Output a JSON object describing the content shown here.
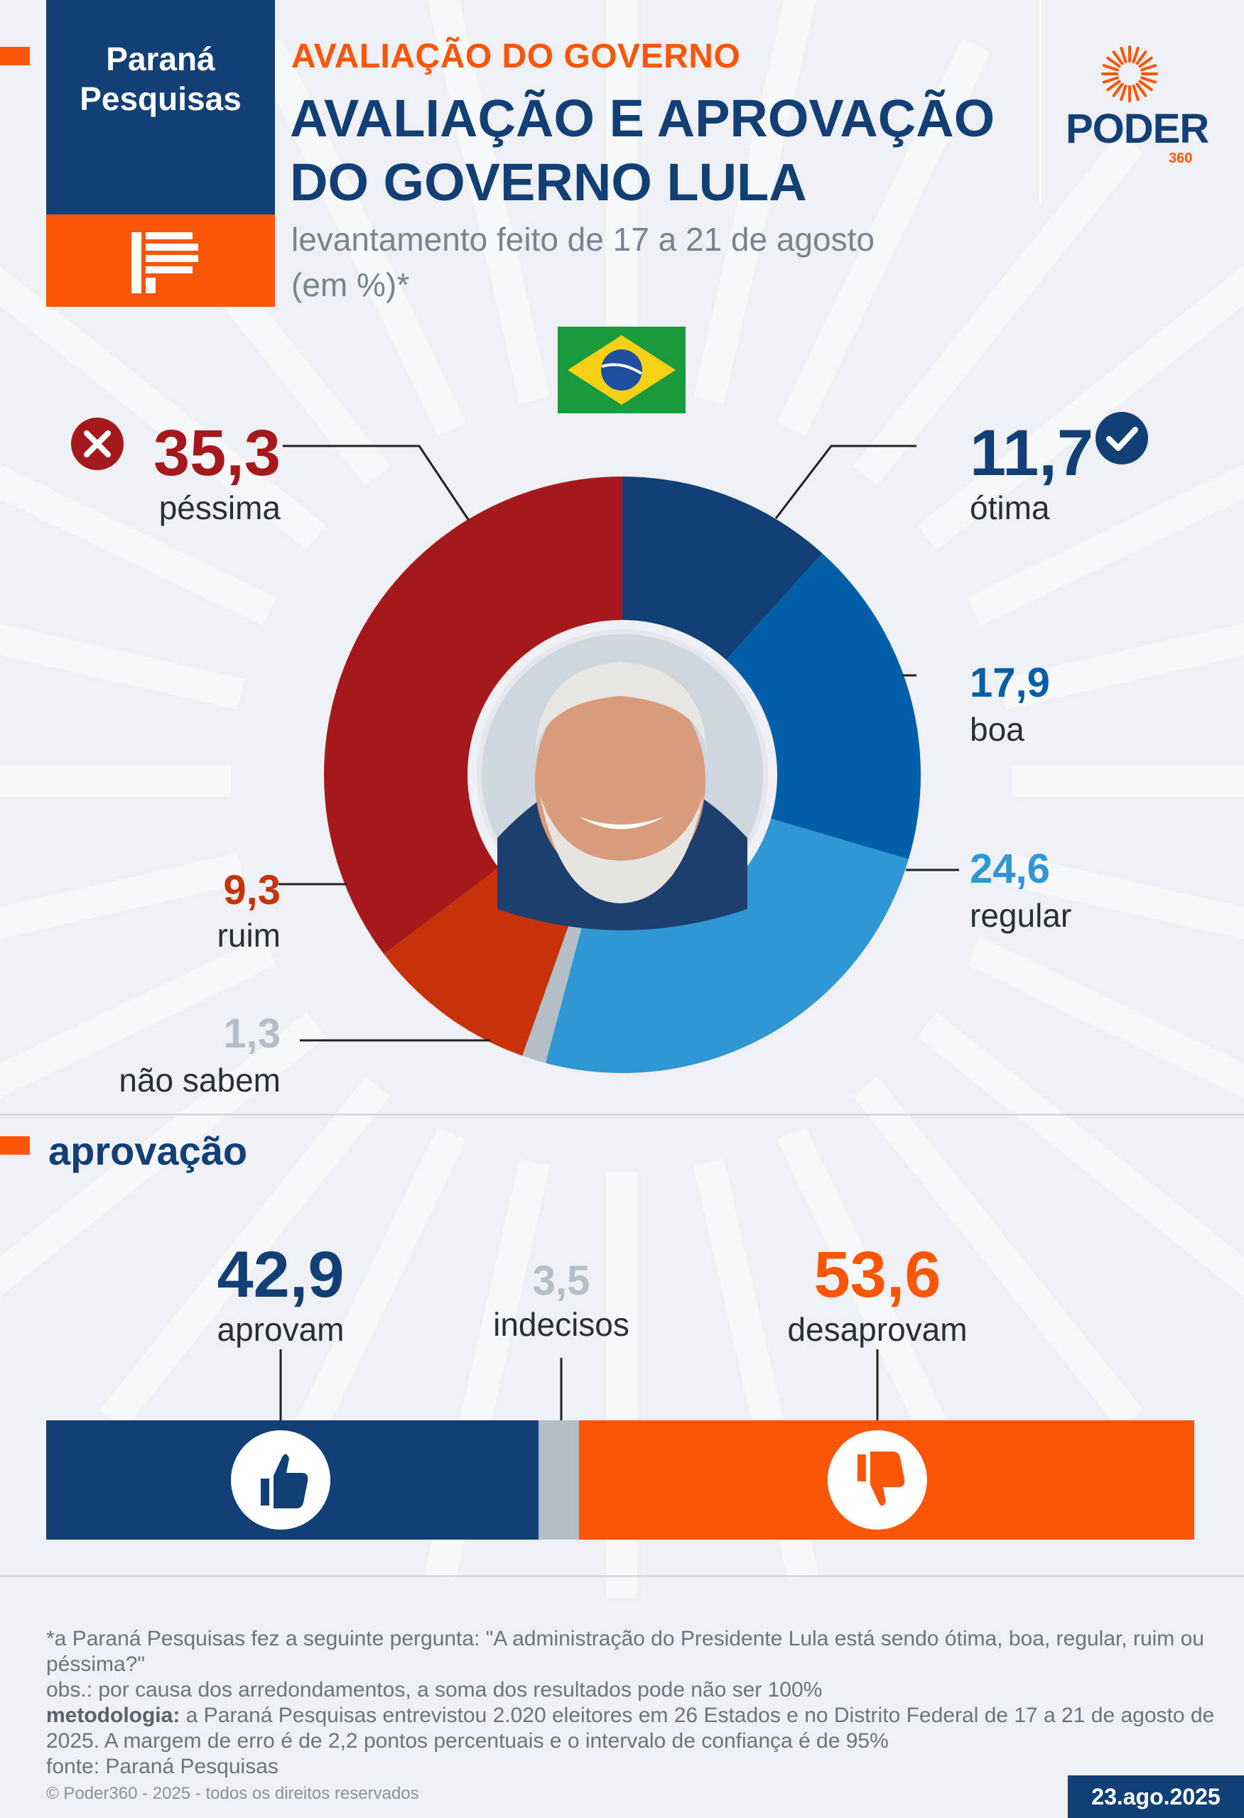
{
  "brand": {
    "left_logo_line1": "Paraná",
    "left_logo_line2": "Pesquisas",
    "right_logo": "PODER",
    "right_logo_sub": "360"
  },
  "header": {
    "kicker": "AVALIAÇÃO DO GOVERNO",
    "title_line1": "AVALIAÇÃO E APROVAÇÃO",
    "title_line2": "DO GOVERNO LULA",
    "subtitle_line1": "levantamento feito de 17 a 21 de agosto",
    "subtitle_line2": "(em %)*"
  },
  "colors": {
    "navy": "#123f75",
    "orange": "#fb5607",
    "pessima": "#a5191c",
    "ruim": "#c8320a",
    "nao_sabem": "#b4bec6",
    "regular": "#2f97d4",
    "boa": "#035ea8",
    "otima": "#123f75"
  },
  "chart_data": [
    {
      "type": "pie",
      "variant": "donut",
      "title": "",
      "start": "top, clockwise from ótima",
      "slices": [
        {
          "label": "ótima",
          "value": 11.7,
          "display": "11,7",
          "color": "#123f75"
        },
        {
          "label": "boa",
          "value": 17.9,
          "display": "17,9",
          "color": "#035ea8"
        },
        {
          "label": "regular",
          "value": 24.6,
          "display": "24,6",
          "color": "#2f97d4"
        },
        {
          "label": "não sabem",
          "value": 1.3,
          "display": "1,3",
          "color": "#b4bec6"
        },
        {
          "label": "ruim",
          "value": 9.3,
          "display": "9,3",
          "color": "#c8320a"
        },
        {
          "label": "péssima",
          "value": 35.3,
          "display": "35,3",
          "color": "#a5191c"
        }
      ]
    },
    {
      "type": "bar",
      "variant": "stacked-horizontal",
      "title": "aprovação",
      "segments": [
        {
          "label": "aprovam",
          "value": 42.9,
          "display": "42,9",
          "color": "#123f75",
          "icon": "thumbs-up-icon"
        },
        {
          "label": "indecisos",
          "value": 3.5,
          "display": "3,5",
          "color": "#b4bec6"
        },
        {
          "label": "desaprovam",
          "value": 53.6,
          "display": "53,6",
          "color": "#fb5607",
          "icon": "thumbs-down-icon"
        }
      ]
    }
  ],
  "footer": {
    "note1": "*a Paraná Pesquisas fez a seguinte pergunta: \"A administração do Presidente Lula está sendo ótima, boa, regular, ruim ou péssima?\"",
    "note2": "obs.: por causa dos arredondamentos, a soma dos resultados pode não ser 100%",
    "method_label": "metodologia:",
    "method_text": " a Paraná Pesquisas entrevistou 2.020 eleitores em 26 Estados e no Distrito Federal de 17 a 21 de agosto de 2025. A margem de erro é de 2,2 pontos percentuais e o intervalo de confiança é de 95%",
    "source": "fonte: Paraná Pesquisas",
    "copyright": "© Poder360 - 2025 - todos os direitos reservados",
    "date": "23.ago.2025"
  }
}
